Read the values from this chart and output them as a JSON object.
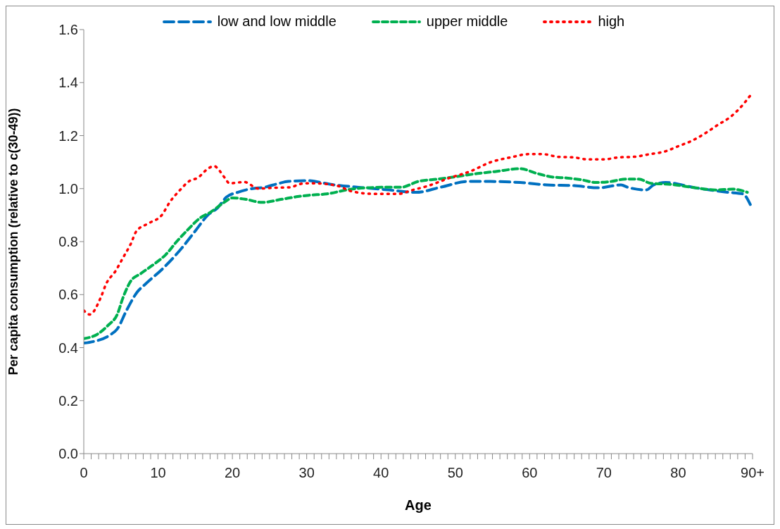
{
  "chart_data": {
    "type": "line",
    "xlabel": "Age",
    "ylabel": "Per capita consumption (relative to c(30-49))",
    "legend": "top",
    "grid": false,
    "marker": "none",
    "xlim": [
      0,
      90
    ],
    "xticks": [
      0,
      {
        "value": 1,
        "label": null
      },
      {
        "value": 2,
        "label": null
      },
      {
        "value": 3,
        "label": null
      },
      {
        "value": 4,
        "label": null
      },
      {
        "value": 5,
        "label": null
      },
      {
        "value": 6,
        "label": null
      },
      {
        "value": 7,
        "label": null
      },
      {
        "value": 8,
        "label": null
      },
      {
        "value": 9,
        "label": null
      },
      10,
      {
        "value": 11,
        "label": null
      },
      {
        "value": 12,
        "label": null
      },
      {
        "value": 13,
        "label": null
      },
      {
        "value": 14,
        "label": null
      },
      {
        "value": 15,
        "label": null
      },
      {
        "value": 16,
        "label": null
      },
      {
        "value": 17,
        "label": null
      },
      {
        "value": 18,
        "label": null
      },
      {
        "value": 19,
        "label": null
      },
      20,
      {
        "value": 21,
        "label": null
      },
      {
        "value": 22,
        "label": null
      },
      {
        "value": 23,
        "label": null
      },
      {
        "value": 24,
        "label": null
      },
      {
        "value": 25,
        "label": null
      },
      {
        "value": 26,
        "label": null
      },
      {
        "value": 27,
        "label": null
      },
      {
        "value": 28,
        "label": null
      },
      {
        "value": 29,
        "label": null
      },
      30,
      {
        "value": 31,
        "label": null
      },
      {
        "value": 32,
        "label": null
      },
      {
        "value": 33,
        "label": null
      },
      {
        "value": 34,
        "label": null
      },
      {
        "value": 35,
        "label": null
      },
      {
        "value": 36,
        "label": null
      },
      {
        "value": 37,
        "label": null
      },
      {
        "value": 38,
        "label": null
      },
      {
        "value": 39,
        "label": null
      },
      40,
      {
        "value": 41,
        "label": null
      },
      {
        "value": 42,
        "label": null
      },
      {
        "value": 43,
        "label": null
      },
      {
        "value": 44,
        "label": null
      },
      {
        "value": 45,
        "label": null
      },
      {
        "value": 46,
        "label": null
      },
      {
        "value": 47,
        "label": null
      },
      {
        "value": 48,
        "label": null
      },
      {
        "value": 49,
        "label": null
      },
      50,
      {
        "value": 51,
        "label": null
      },
      {
        "value": 52,
        "label": null
      },
      {
        "value": 53,
        "label": null
      },
      {
        "value": 54,
        "label": null
      },
      {
        "value": 55,
        "label": null
      },
      {
        "value": 56,
        "label": null
      },
      {
        "value": 57,
        "label": null
      },
      {
        "value": 58,
        "label": null
      },
      {
        "value": 59,
        "label": null
      },
      60,
      {
        "value": 61,
        "label": null
      },
      {
        "value": 62,
        "label": null
      },
      {
        "value": 63,
        "label": null
      },
      {
        "value": 64,
        "label": null
      },
      {
        "value": 65,
        "label": null
      },
      {
        "value": 66,
        "label": null
      },
      {
        "value": 67,
        "label": null
      },
      {
        "value": 68,
        "label": null
      },
      {
        "value": 69,
        "label": null
      },
      70,
      {
        "value": 71,
        "label": null
      },
      {
        "value": 72,
        "label": null
      },
      {
        "value": 73,
        "label": null
      },
      {
        "value": 74,
        "label": null
      },
      {
        "value": 75,
        "label": null
      },
      {
        "value": 76,
        "label": null
      },
      {
        "value": 77,
        "label": null
      },
      {
        "value": 78,
        "label": null
      },
      {
        "value": 79,
        "label": null
      },
      80,
      {
        "value": 81,
        "label": null
      },
      {
        "value": 82,
        "label": null
      },
      {
        "value": 83,
        "label": null
      },
      {
        "value": 84,
        "label": null
      },
      {
        "value": 85,
        "label": null
      },
      {
        "value": 86,
        "label": null
      },
      {
        "value": 87,
        "label": null
      },
      {
        "value": 88,
        "label": null
      },
      {
        "value": 89,
        "label": null
      },
      {
        "value": 90,
        "label": "90+"
      }
    ],
    "ylim": [
      0,
      1.6
    ],
    "yticks": [
      {
        "value": 0,
        "label": "0.0"
      },
      {
        "value": 0.2,
        "label": "0.2"
      },
      {
        "value": 0.4,
        "label": "0.4"
      },
      {
        "value": 0.6,
        "label": "0.6"
      },
      {
        "value": 0.8,
        "label": "0.8"
      },
      {
        "value": 1,
        "label": "1.0"
      },
      {
        "value": 1.2,
        "label": "1.2"
      },
      {
        "value": 1.4,
        "label": "1.4"
      },
      {
        "value": 1.6,
        "label": "1.6"
      }
    ],
    "series": [
      {
        "name": "low and low middle",
        "color": "#0070c0",
        "line_style": "dashed",
        "x": [
          0,
          1.3,
          3.5,
          4.5,
          5.8,
          7.2,
          8.3,
          10.7,
          13.2,
          15,
          16.7,
          18,
          19.2,
          20.7,
          22.7,
          24.3,
          26.3,
          27.5,
          30,
          33.7,
          37,
          41,
          44.7,
          48,
          51.7,
          54.7,
          58.7,
          62.3,
          66,
          69.3,
          72.3,
          73.2,
          75.7,
          76.7,
          78.3,
          82.3,
          86.7,
          88.7,
          89.7
        ],
        "values": [
          0.417,
          0.423,
          0.447,
          0.47,
          0.543,
          0.61,
          0.64,
          0.7,
          0.776,
          0.84,
          0.9,
          0.927,
          0.968,
          0.986,
          1.0,
          1.005,
          1.02,
          1.027,
          1.03,
          1.014,
          1.005,
          0.995,
          0.986,
          1.005,
          1.027,
          1.027,
          1.023,
          1.014,
          1.011,
          1.003,
          1.014,
          1.005,
          0.995,
          1.014,
          1.023,
          1.003,
          0.986,
          0.98,
          0.94
        ]
      },
      {
        "name": "upper middle",
        "color": "#00b050",
        "line_style": "dashed",
        "x": [
          0,
          1.8,
          3.3,
          4.5,
          5.3,
          6.3,
          7.7,
          9.7,
          11,
          12.5,
          14,
          15.7,
          17,
          19,
          20,
          21.7,
          24,
          26.7,
          28.8,
          30.3,
          32.7,
          36,
          40.3,
          42.7,
          45,
          47.7,
          50.3,
          53,
          55.3,
          58.7,
          61,
          63,
          65,
          67,
          69,
          70.7,
          73,
          74.7,
          76.3,
          79,
          82.3,
          85,
          87.3,
          89.3
        ],
        "values": [
          0.434,
          0.45,
          0.485,
          0.525,
          0.59,
          0.65,
          0.68,
          0.72,
          0.75,
          0.8,
          0.845,
          0.89,
          0.91,
          0.95,
          0.965,
          0.96,
          0.948,
          0.96,
          0.97,
          0.975,
          0.98,
          0.998,
          1.005,
          1.005,
          1.027,
          1.036,
          1.046,
          1.057,
          1.064,
          1.075,
          1.057,
          1.044,
          1.04,
          1.033,
          1.023,
          1.026,
          1.036,
          1.036,
          1.02,
          1.016,
          1.003,
          0.995,
          0.998,
          0.986
        ]
      },
      {
        "name": "high",
        "color": "#ff0000",
        "line_style": "dotted",
        "x": [
          0,
          0.8,
          2.3,
          3,
          4.3,
          5.3,
          6.3,
          7.1,
          8.8,
          10.5,
          11.6,
          12.8,
          14.3,
          15.3,
          16.7,
          17.5,
          19,
          19.6,
          21.6,
          23.5,
          25.5,
          27.7,
          29.7,
          31,
          34.2,
          36,
          39.2,
          42.3,
          44.3,
          46.3,
          49.2,
          52,
          54.8,
          57.8,
          59.8,
          61.8,
          63.8,
          65.8,
          68,
          70,
          72,
          74,
          76.2,
          78.2,
          80,
          81.8,
          83.7,
          85.3,
          87,
          88.5,
          89.8
        ],
        "values": [
          0.54,
          0.525,
          0.59,
          0.64,
          0.69,
          0.74,
          0.79,
          0.84,
          0.87,
          0.9,
          0.95,
          0.99,
          1.03,
          1.04,
          1.075,
          1.085,
          1.04,
          1.02,
          1.025,
          1.0,
          1.003,
          1.005,
          1.02,
          1.02,
          1.01,
          0.99,
          0.98,
          0.98,
          0.995,
          1.01,
          1.04,
          1.065,
          1.1,
          1.12,
          1.13,
          1.13,
          1.12,
          1.118,
          1.11,
          1.11,
          1.118,
          1.12,
          1.13,
          1.14,
          1.16,
          1.18,
          1.21,
          1.24,
          1.27,
          1.31,
          1.355
        ]
      }
    ]
  }
}
